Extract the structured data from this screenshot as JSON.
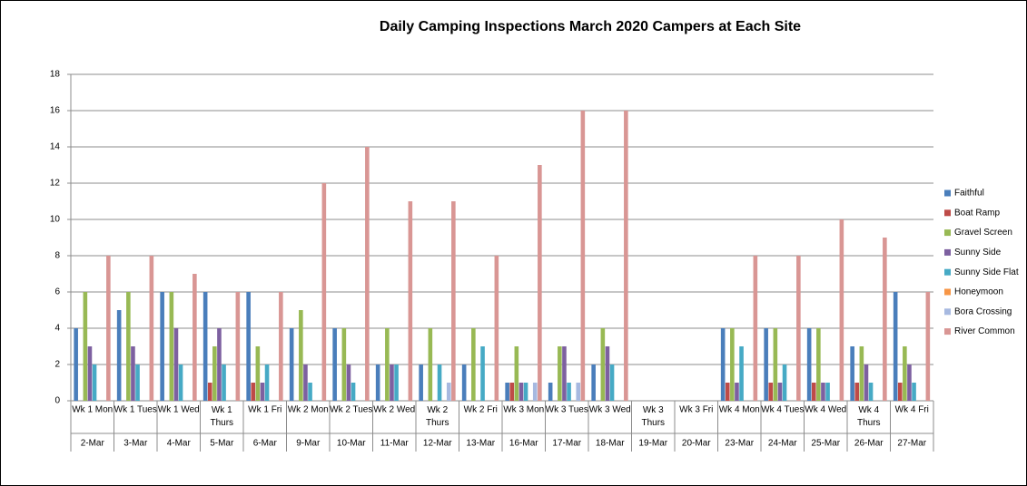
{
  "chart_data": {
    "type": "bar",
    "title": "Daily Camping Inspections March 2020 Campers at Each Site",
    "categories": [
      "Wk 1 Mon",
      "Wk 1 Tues",
      "Wk 1 Wed",
      "Wk 1 Thurs",
      "Wk 1 Fri",
      "Wk 2 Mon",
      "Wk 2 Tues",
      "Wk 2 Wed",
      "Wk 2 Thurs",
      "Wk 2 Fri",
      "Wk 3 Mon",
      "Wk 3 Tues",
      "Wk 3 Wed",
      "Wk 3 Thurs",
      "Wk 3 Fri",
      "Wk 4 Mon",
      "Wk 4 Tues",
      "Wk 4 Wed",
      "Wk 4 Thurs",
      "Wk 4 Fri"
    ],
    "dates": [
      "2-Mar",
      "3-Mar",
      "4-Mar",
      "5-Mar",
      "6-Mar",
      "9-Mar",
      "10-Mar",
      "11-Mar",
      "12-Mar",
      "13-Mar",
      "16-Mar",
      "17-Mar",
      "18-Mar",
      "19-Mar",
      "20-Mar",
      "23-Mar",
      "24-Mar",
      "25-Mar",
      "26-Mar",
      "27-Mar"
    ],
    "series": [
      {
        "name": "Faithful",
        "color": "#4a7ebb",
        "values": [
          4,
          5,
          6,
          6,
          6,
          4,
          4,
          2,
          2,
          2,
          1,
          1,
          2,
          0,
          0,
          4,
          4,
          4,
          3,
          6
        ]
      },
      {
        "name": "Boat Ramp",
        "color": "#be4b48",
        "values": [
          0,
          0,
          0,
          1,
          1,
          0,
          0,
          0,
          0,
          0,
          1,
          0,
          0,
          0,
          0,
          1,
          1,
          1,
          1,
          1
        ]
      },
      {
        "name": "Gravel Screen",
        "color": "#98b954",
        "values": [
          6,
          6,
          6,
          3,
          3,
          5,
          4,
          4,
          4,
          4,
          3,
          3,
          4,
          0,
          0,
          4,
          4,
          4,
          3,
          3
        ]
      },
      {
        "name": "Sunny Side",
        "color": "#7d60a0",
        "values": [
          3,
          3,
          4,
          4,
          1,
          2,
          2,
          2,
          0,
          0,
          1,
          3,
          3,
          0,
          0,
          1,
          1,
          1,
          2,
          2
        ]
      },
      {
        "name": "Sunny Side Flat",
        "color": "#46aac5",
        "values": [
          2,
          2,
          2,
          2,
          2,
          1,
          1,
          2,
          2,
          3,
          1,
          1,
          2,
          0,
          0,
          3,
          2,
          1,
          1,
          1
        ]
      },
      {
        "name": "Honeymoon",
        "color": "#f79646",
        "values": [
          0,
          0,
          0,
          0,
          0,
          0,
          0,
          0,
          0,
          0,
          0,
          0,
          0,
          0,
          0,
          0,
          0,
          0,
          0,
          0
        ]
      },
      {
        "name": "Bora Crossing",
        "color": "#a7b9e0",
        "values": [
          0,
          0,
          0,
          0,
          0,
          0,
          0,
          0,
          1,
          0,
          1,
          1,
          0,
          0,
          0,
          0,
          0,
          0,
          0,
          0
        ]
      },
      {
        "name": "River Common",
        "color": "#d99694",
        "values": [
          8,
          8,
          7,
          6,
          6,
          12,
          14,
          11,
          11,
          8,
          13,
          16,
          16,
          0,
          0,
          8,
          8,
          10,
          9,
          6
        ]
      }
    ],
    "ylim": [
      0,
      18
    ],
    "yticks": [
      0,
      2,
      4,
      6,
      8,
      10,
      12,
      14,
      16,
      18
    ],
    "grid": true,
    "legend": "right"
  }
}
